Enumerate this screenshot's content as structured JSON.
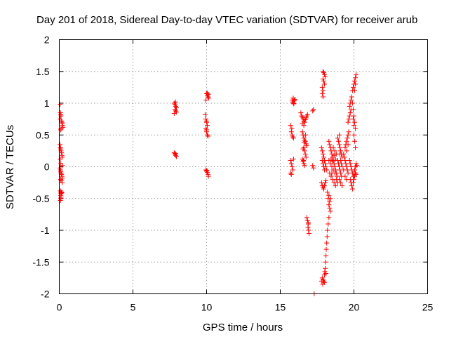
{
  "chart_data": {
    "type": "scatter",
    "title": "Day 201 of 2018, Sidereal Day-to-day VTEC variation (SDTVAR) for receiver arub",
    "xlabel": "GPS time / hours",
    "ylabel": "SDTVAR / TECUs",
    "xlim": [
      0,
      25
    ],
    "ylim": [
      -2,
      2
    ],
    "xticks": [
      0,
      5,
      10,
      15,
      20,
      25
    ],
    "yticks": [
      -2,
      -1.5,
      -1,
      -0.5,
      0,
      0.5,
      1,
      1.5,
      2
    ],
    "xtick_labels": [
      "0",
      "5",
      "10",
      "15",
      "20",
      "25"
    ],
    "ytick_labels": [
      "-2",
      "-1.5",
      "-1",
      "-0.5",
      "0",
      "0.5",
      "1",
      "1.5",
      "2"
    ],
    "grid": true,
    "marker": "+",
    "color": "#ff0000",
    "series": [
      {
        "name": "SDTVAR",
        "points": [
          [
            0.05,
            0.98
          ],
          [
            0.08,
            0.85
          ],
          [
            0.1,
            0.82
          ],
          [
            0.12,
            0.8
          ],
          [
            0.06,
            0.75
          ],
          [
            0.15,
            0.72
          ],
          [
            0.18,
            0.7
          ],
          [
            0.2,
            0.68
          ],
          [
            0.22,
            0.65
          ],
          [
            0.25,
            0.62
          ],
          [
            0.12,
            0.6
          ],
          [
            0.1,
            0.58
          ],
          [
            0.05,
            0.35
          ],
          [
            0.08,
            0.3
          ],
          [
            0.1,
            0.28
          ],
          [
            0.12,
            0.25
          ],
          [
            0.15,
            0.22
          ],
          [
            0.18,
            0.18
          ],
          [
            0.2,
            0.15
          ],
          [
            0.06,
            0.12
          ],
          [
            0.1,
            0.05
          ],
          [
            0.2,
            0.02
          ],
          [
            0.05,
            -0.02
          ],
          [
            0.08,
            -0.05
          ],
          [
            0.1,
            -0.08
          ],
          [
            0.12,
            -0.1
          ],
          [
            0.15,
            -0.12
          ],
          [
            0.18,
            -0.15
          ],
          [
            0.2,
            -0.18
          ],
          [
            0.1,
            -0.2
          ],
          [
            0.12,
            -0.22
          ],
          [
            0.2,
            -0.25
          ],
          [
            0.08,
            -0.38
          ],
          [
            0.1,
            -0.4
          ],
          [
            0.12,
            -0.42
          ],
          [
            0.15,
            -0.4
          ],
          [
            0.18,
            -0.41
          ],
          [
            0.1,
            -0.45
          ],
          [
            0.12,
            -0.48
          ],
          [
            0.1,
            -0.5
          ],
          [
            0.08,
            -0.53
          ],
          [
            7.8,
            1.0
          ],
          [
            7.85,
            0.98
          ],
          [
            7.9,
            0.95
          ],
          [
            7.95,
            0.93
          ],
          [
            7.85,
            0.9
          ],
          [
            7.9,
            0.88
          ],
          [
            7.95,
            0.86
          ],
          [
            7.8,
            0.84
          ],
          [
            7.9,
            1.02
          ],
          [
            7.8,
            0.22
          ],
          [
            7.85,
            0.2
          ],
          [
            7.9,
            0.18
          ],
          [
            7.95,
            0.16
          ],
          [
            7.88,
            0.21
          ],
          [
            10.0,
            1.15
          ],
          [
            10.05,
            1.12
          ],
          [
            10.1,
            1.1
          ],
          [
            10.15,
            1.08
          ],
          [
            9.95,
            1.05
          ],
          [
            10.05,
            1.16
          ],
          [
            10.12,
            1.14
          ],
          [
            9.9,
            0.82
          ],
          [
            9.95,
            0.75
          ],
          [
            10.0,
            0.7
          ],
          [
            10.05,
            0.65
          ],
          [
            9.95,
            0.6
          ],
          [
            10.0,
            0.55
          ],
          [
            10.05,
            0.5
          ],
          [
            10.1,
            0.48
          ],
          [
            10.0,
            0.58
          ],
          [
            9.98,
            0.72
          ],
          [
            9.95,
            -0.05
          ],
          [
            10.0,
            -0.07
          ],
          [
            10.05,
            -0.09
          ],
          [
            10.1,
            -0.12
          ],
          [
            10.12,
            -0.15
          ],
          [
            10.02,
            -0.06
          ],
          [
            15.8,
            1.05
          ],
          [
            15.85,
            1.02
          ],
          [
            15.9,
            1.0
          ],
          [
            15.95,
            1.04
          ],
          [
            16.0,
            1.06
          ],
          [
            15.88,
            1.08
          ],
          [
            15.92,
            0.99
          ],
          [
            15.7,
            0.65
          ],
          [
            15.75,
            0.55
          ],
          [
            15.8,
            0.5
          ],
          [
            15.85,
            0.47
          ],
          [
            15.9,
            0.45
          ],
          [
            15.78,
            0.6
          ],
          [
            15.7,
            0.1
          ],
          [
            15.75,
            0.05
          ],
          [
            15.8,
            0.0
          ],
          [
            15.85,
            -0.05
          ],
          [
            15.7,
            -0.1
          ],
          [
            15.75,
            -0.12
          ],
          [
            15.9,
            0.12
          ],
          [
            16.4,
            0.85
          ],
          [
            16.45,
            0.8
          ],
          [
            16.5,
            0.78
          ],
          [
            16.55,
            0.75
          ],
          [
            16.6,
            0.72
          ],
          [
            16.65,
            0.7
          ],
          [
            16.7,
            0.74
          ],
          [
            16.75,
            0.77
          ],
          [
            16.8,
            0.8
          ],
          [
            16.85,
            0.82
          ],
          [
            16.5,
            0.68
          ],
          [
            16.6,
            0.65
          ],
          [
            16.5,
            0.55
          ],
          [
            16.55,
            0.5
          ],
          [
            16.6,
            0.45
          ],
          [
            16.65,
            0.42
          ],
          [
            16.7,
            0.4
          ],
          [
            16.75,
            0.36
          ],
          [
            16.8,
            0.33
          ],
          [
            16.6,
            0.3
          ],
          [
            16.65,
            0.25
          ],
          [
            16.7,
            0.2
          ],
          [
            16.75,
            0.15
          ],
          [
            16.62,
            0.38
          ],
          [
            16.72,
            0.5
          ],
          [
            16.55,
            0.28
          ],
          [
            16.5,
            0.12
          ],
          [
            16.55,
            0.08
          ],
          [
            16.6,
            0.05
          ],
          [
            16.65,
            0.02
          ],
          [
            16.58,
            0.1
          ],
          [
            16.8,
            -0.8
          ],
          [
            16.85,
            -0.85
          ],
          [
            16.9,
            -0.9
          ],
          [
            16.88,
            -0.95
          ],
          [
            16.92,
            -1.0
          ],
          [
            16.95,
            -1.05
          ],
          [
            16.9,
            -0.88
          ],
          [
            17.2,
            0.88
          ],
          [
            17.25,
            0.9
          ],
          [
            17.2,
            0.02
          ],
          [
            17.25,
            -0.02
          ],
          [
            17.3,
            -2.0
          ],
          [
            17.9,
            1.5
          ],
          [
            17.95,
            1.48
          ],
          [
            18.0,
            1.45
          ],
          [
            18.05,
            1.42
          ],
          [
            17.9,
            1.38
          ],
          [
            17.95,
            1.35
          ],
          [
            18.0,
            1.3
          ],
          [
            17.85,
            1.25
          ],
          [
            17.9,
            1.2
          ],
          [
            17.85,
            1.15
          ],
          [
            17.9,
            1.1
          ],
          [
            17.8,
            0.3
          ],
          [
            17.85,
            0.25
          ],
          [
            17.9,
            0.2
          ],
          [
            17.95,
            0.15
          ],
          [
            18.0,
            0.1
          ],
          [
            18.05,
            0.05
          ],
          [
            18.1,
            0.0
          ],
          [
            18.15,
            -0.05
          ],
          [
            17.85,
            0.1
          ],
          [
            17.9,
            0.05
          ],
          [
            17.95,
            0.0
          ],
          [
            18.0,
            -0.05
          ],
          [
            17.8,
            -0.25
          ],
          [
            17.85,
            -0.3
          ],
          [
            17.9,
            -0.32
          ],
          [
            17.95,
            -0.35
          ],
          [
            18.0,
            -0.3
          ],
          [
            18.05,
            -0.25
          ],
          [
            18.1,
            -0.22
          ],
          [
            18.2,
            -0.4
          ],
          [
            18.25,
            -0.5
          ],
          [
            18.3,
            -0.6
          ],
          [
            18.35,
            -0.55
          ],
          [
            18.4,
            -0.5
          ],
          [
            18.3,
            -0.45
          ],
          [
            18.35,
            -0.65
          ],
          [
            18.4,
            -0.7
          ],
          [
            18.3,
            -0.8
          ],
          [
            18.25,
            -0.9
          ],
          [
            18.2,
            -1.0
          ],
          [
            18.18,
            -1.1
          ],
          [
            18.15,
            -1.2
          ],
          [
            18.12,
            -1.3
          ],
          [
            18.1,
            -1.4
          ],
          [
            18.08,
            -1.5
          ],
          [
            18.05,
            -1.6
          ],
          [
            18.02,
            -1.65
          ],
          [
            18.1,
            -1.68
          ],
          [
            18.0,
            -1.7
          ],
          [
            17.85,
            -1.75
          ],
          [
            17.9,
            -1.78
          ],
          [
            17.95,
            -1.8
          ],
          [
            18.0,
            -1.82
          ],
          [
            17.8,
            -1.8
          ],
          [
            17.88,
            -1.85
          ],
          [
            18.3,
            0.4
          ],
          [
            18.35,
            0.35
          ],
          [
            18.4,
            0.3
          ],
          [
            18.45,
            0.25
          ],
          [
            18.5,
            0.2
          ],
          [
            18.55,
            0.15
          ],
          [
            18.6,
            0.1
          ],
          [
            18.65,
            0.05
          ],
          [
            18.7,
            0.0
          ],
          [
            18.75,
            -0.05
          ],
          [
            18.8,
            -0.1
          ],
          [
            18.85,
            -0.15
          ],
          [
            18.3,
            0.1
          ],
          [
            18.4,
            0.05
          ],
          [
            18.5,
            0.0
          ],
          [
            18.6,
            -0.05
          ],
          [
            18.7,
            -0.1
          ],
          [
            18.8,
            -0.2
          ],
          [
            18.9,
            -0.25
          ],
          [
            18.5,
            -0.1
          ],
          [
            18.45,
            0.12
          ],
          [
            18.55,
            0.08
          ],
          [
            18.65,
            0.18
          ],
          [
            18.75,
            0.12
          ],
          [
            18.35,
            -0.1
          ],
          [
            18.45,
            -0.15
          ],
          [
            18.55,
            -0.2
          ],
          [
            18.65,
            -0.25
          ],
          [
            18.75,
            -0.3
          ],
          [
            18.6,
            0.3
          ],
          [
            18.7,
            0.25
          ],
          [
            18.8,
            0.2
          ],
          [
            18.9,
            0.45
          ],
          [
            18.95,
            0.4
          ],
          [
            19.0,
            0.35
          ],
          [
            19.05,
            0.3
          ],
          [
            19.1,
            0.25
          ],
          [
            19.15,
            0.2
          ],
          [
            19.2,
            0.15
          ],
          [
            19.0,
            0.5
          ],
          [
            19.05,
            0.2
          ],
          [
            19.1,
            0.1
          ],
          [
            19.15,
            0.05
          ],
          [
            19.2,
            0.0
          ],
          [
            18.9,
            0.1
          ],
          [
            18.95,
            0.05
          ],
          [
            19.0,
            0.0
          ],
          [
            19.05,
            -0.05
          ],
          [
            19.1,
            -0.1
          ],
          [
            19.15,
            -0.15
          ],
          [
            19.0,
            -0.2
          ],
          [
            19.1,
            -0.25
          ],
          [
            19.2,
            -0.3
          ],
          [
            19.3,
            0.2
          ],
          [
            19.35,
            0.15
          ],
          [
            19.4,
            0.1
          ],
          [
            19.45,
            0.05
          ],
          [
            19.5,
            0.0
          ],
          [
            19.55,
            -0.05
          ],
          [
            19.6,
            -0.1
          ],
          [
            19.4,
            -0.15
          ],
          [
            19.5,
            -0.2
          ],
          [
            19.3,
            -0.05
          ],
          [
            19.4,
            0.3
          ],
          [
            19.45,
            0.35
          ],
          [
            19.5,
            0.4
          ],
          [
            19.55,
            0.45
          ],
          [
            19.6,
            0.5
          ],
          [
            19.65,
            0.55
          ],
          [
            19.6,
            0.35
          ],
          [
            19.5,
            0.25
          ],
          [
            19.6,
            0.7
          ],
          [
            19.65,
            0.75
          ],
          [
            19.7,
            0.8
          ],
          [
            19.75,
            0.85
          ],
          [
            19.7,
            0.95
          ],
          [
            19.75,
            1.0
          ],
          [
            19.8,
            1.05
          ],
          [
            19.85,
            1.1
          ],
          [
            19.8,
            0.9
          ],
          [
            19.9,
            1.2
          ],
          [
            19.95,
            1.25
          ],
          [
            20.0,
            1.3
          ],
          [
            20.05,
            1.35
          ],
          [
            20.1,
            1.4
          ],
          [
            20.15,
            1.45
          ],
          [
            20.1,
            1.3
          ],
          [
            20.05,
            1.2
          ],
          [
            19.9,
            1.0
          ],
          [
            19.95,
            0.9
          ],
          [
            20.0,
            0.8
          ],
          [
            20.05,
            0.7
          ],
          [
            20.1,
            0.6
          ],
          [
            20.0,
            0.5
          ],
          [
            20.05,
            0.4
          ],
          [
            20.1,
            0.3
          ],
          [
            19.95,
            0.75
          ],
          [
            20.0,
            0.65
          ],
          [
            19.7,
            0.1
          ],
          [
            19.75,
            0.05
          ],
          [
            19.8,
            0.0
          ],
          [
            19.85,
            -0.05
          ],
          [
            19.9,
            -0.1
          ],
          [
            19.95,
            -0.15
          ],
          [
            20.0,
            -0.1
          ],
          [
            20.05,
            -0.05
          ],
          [
            20.1,
            0.0
          ],
          [
            20.15,
            0.05
          ],
          [
            19.75,
            -0.2
          ],
          [
            19.8,
            -0.25
          ],
          [
            19.85,
            -0.3
          ],
          [
            19.9,
            -0.35
          ],
          [
            19.95,
            -0.25
          ],
          [
            20.0,
            -0.2
          ],
          [
            20.05,
            -0.15
          ],
          [
            20.1,
            -0.1
          ],
          [
            20.15,
            -0.12
          ],
          [
            20.2,
            0.02
          ]
        ]
      }
    ]
  }
}
